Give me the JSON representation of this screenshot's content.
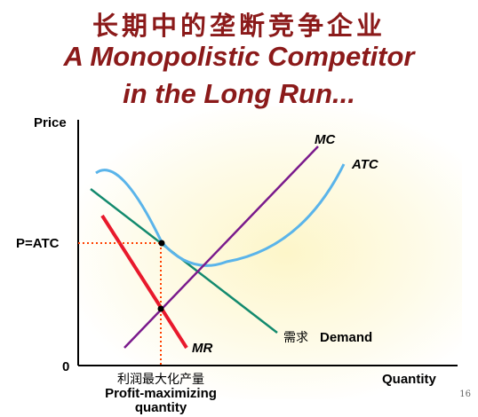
{
  "title": {
    "cn": "长期中的垄断竞争企业",
    "en_line1": "A Monopolistic Competitor",
    "en_line2": "in the Long Run..."
  },
  "axes": {
    "y_label": "Price",
    "x_label": "Quantity",
    "origin": "0"
  },
  "labels": {
    "price_level": "P=ATC",
    "mc": "MC",
    "atc": "ATC",
    "mr": "MR",
    "demand_cn": "需求",
    "demand_en": "Demand",
    "qty_cn": "利润最大化产量",
    "qty_en_line1": "Profit-maximizing",
    "qty_en_line2": "quantity"
  },
  "colors": {
    "title": "#8b1a1a",
    "mc": "#7a1a8c",
    "atc": "#5ab4ea",
    "mr": "#e8192c",
    "demand": "#138a6e",
    "guide": "#ff4000",
    "glow": "#fdf6c9"
  },
  "page_number": "16"
}
